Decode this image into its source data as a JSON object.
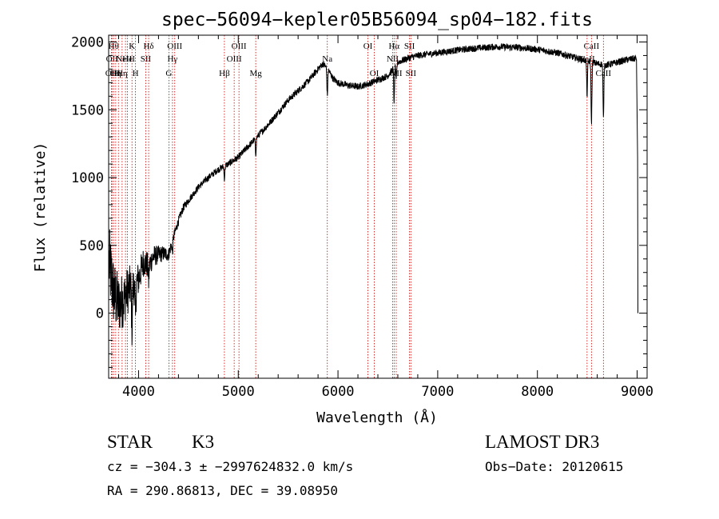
{
  "chart_data": {
    "type": "line",
    "title": "spec−56094−kepler05B56094_sp04−182.fits",
    "xlabel": "Wavelength (Å)",
    "ylabel": "Flux (relative)",
    "xlim": [
      3700,
      9100
    ],
    "ylim": [
      -480,
      2050
    ],
    "x_ticks": [
      4000,
      5000,
      6000,
      7000,
      8000,
      9000
    ],
    "y_ticks": [
      0,
      500,
      1000,
      1500,
      2000
    ],
    "continuum": [
      [
        3700,
        400
      ],
      [
        3750,
        150
      ],
      [
        3800,
        60
      ],
      [
        3850,
        100
      ],
      [
        3900,
        180
      ],
      [
        3950,
        200
      ],
      [
        4000,
        250
      ],
      [
        4050,
        380
      ],
      [
        4100,
        350
      ],
      [
        4150,
        420
      ],
      [
        4200,
        430
      ],
      [
        4250,
        440
      ],
      [
        4300,
        430
      ],
      [
        4350,
        560
      ],
      [
        4400,
        680
      ],
      [
        4450,
        780
      ],
      [
        4500,
        830
      ],
      [
        4600,
        930
      ],
      [
        4700,
        1000
      ],
      [
        4800,
        1060
      ],
      [
        4900,
        1100
      ],
      [
        5000,
        1150
      ],
      [
        5100,
        1230
      ],
      [
        5200,
        1310
      ],
      [
        5300,
        1390
      ],
      [
        5400,
        1480
      ],
      [
        5500,
        1570
      ],
      [
        5600,
        1640
      ],
      [
        5700,
        1710
      ],
      [
        5800,
        1800
      ],
      [
        5850,
        1840
      ],
      [
        5900,
        1800
      ],
      [
        5950,
        1730
      ],
      [
        6000,
        1700
      ],
      [
        6100,
        1680
      ],
      [
        6200,
        1670
      ],
      [
        6300,
        1690
      ],
      [
        6400,
        1720
      ],
      [
        6500,
        1750
      ],
      [
        6550,
        1800
      ],
      [
        6600,
        1850
      ],
      [
        6700,
        1880
      ],
      [
        6800,
        1900
      ],
      [
        7000,
        1920
      ],
      [
        7200,
        1940
      ],
      [
        7400,
        1955
      ],
      [
        7600,
        1965
      ],
      [
        7800,
        1960
      ],
      [
        8000,
        1945
      ],
      [
        8200,
        1920
      ],
      [
        8400,
        1880
      ],
      [
        8500,
        1860
      ],
      [
        8600,
        1840
      ],
      [
        8700,
        1830
      ],
      [
        8800,
        1850
      ],
      [
        8900,
        1870
      ],
      [
        9000,
        1880
      ],
      [
        9010,
        1000
      ]
    ],
    "absorption": [
      {
        "x": 3934,
        "depth": 300
      },
      {
        "x": 3969,
        "depth": 260
      },
      {
        "x": 4101,
        "depth": 120
      },
      {
        "x": 4340,
        "depth": 90
      },
      {
        "x": 4861,
        "depth": 90
      },
      {
        "x": 5175,
        "depth": 120
      },
      {
        "x": 5893,
        "depth": 200
      },
      {
        "x": 6563,
        "depth": 250
      },
      {
        "x": 6585,
        "depth": 120
      },
      {
        "x": 8498,
        "depth": 250
      },
      {
        "x": 8542,
        "depth": 460
      },
      {
        "x": 8662,
        "depth": 400
      }
    ],
    "noise": {
      "amplitude_blue": 260,
      "amplitude_red": 25
    },
    "lines": [
      {
        "x": 3727,
        "label": "OII",
        "row": 3
      },
      {
        "x": 3734,
        "label": "OII",
        "row": 2
      },
      {
        "x": 3750,
        "label": "Hθ",
        "row": 1
      },
      {
        "x": 3771,
        "label": "Hη",
        "row": 3
      },
      {
        "x": 3798,
        "label": "Hι",
        "row": 3
      },
      {
        "x": 3835,
        "label": "Hη",
        "row": 3
      },
      {
        "x": 3869,
        "label": "NeIII",
        "row": 2
      },
      {
        "x": 3889,
        "label": "He",
        "row": 2
      },
      {
        "x": 3934,
        "label": "K",
        "row": 1
      },
      {
        "x": 3969,
        "label": "H",
        "row": 3
      },
      {
        "x": 4072,
        "label": "SII",
        "row": 2
      },
      {
        "x": 4101,
        "label": "Hδ",
        "row": 1
      },
      {
        "x": 4304,
        "label": "G",
        "row": 3
      },
      {
        "x": 4340,
        "label": "Hγ",
        "row": 2
      },
      {
        "x": 4363,
        "label": "OIII",
        "row": 1
      },
      {
        "x": 4861,
        "label": "Hβ",
        "row": 3
      },
      {
        "x": 4959,
        "label": "OIII",
        "row": 2
      },
      {
        "x": 5007,
        "label": "OIII",
        "row": 1
      },
      {
        "x": 5175,
        "label": "Mg",
        "row": 3
      },
      {
        "x": 5893,
        "label": "Na",
        "row": 2
      },
      {
        "x": 6300,
        "label": "OI",
        "row": 1
      },
      {
        "x": 6364,
        "label": "OI",
        "row": 3
      },
      {
        "x": 6548,
        "label": "NII",
        "row": 2
      },
      {
        "x": 6563,
        "label": "Hα",
        "row": 1
      },
      {
        "x": 6584,
        "label": "NII",
        "row": 3
      },
      {
        "x": 6717,
        "label": "SII",
        "row": 1
      },
      {
        "x": 6731,
        "label": "SII",
        "row": 3
      },
      {
        "x": 8498,
        "label": "CaII",
        "row": 2
      },
      {
        "x": 8542,
        "label": "CaII",
        "row": 1
      },
      {
        "x": 8662,
        "label": "CaII",
        "row": 3
      }
    ]
  },
  "info": {
    "class": "STAR",
    "subclass": "K3",
    "survey": "LAMOST DR3",
    "cz": "cz = −304.3 ± −2997624832.0 km/s",
    "obs_date": "Obs−Date: 20120615",
    "radec": "RA = 290.86813, DEC =  39.08950"
  },
  "colors": {
    "spectrum": "#000000",
    "line_markers": "#cc0000",
    "axes": "#000000"
  }
}
